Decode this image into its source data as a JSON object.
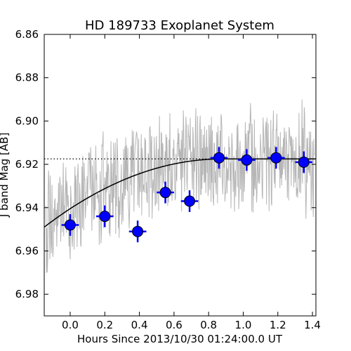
{
  "chart_data": {
    "type": "scatter",
    "title": "HD 189733 Exoplanet System",
    "xlabel": "Hours Since 2013/10/30 01:24:00.0 UT",
    "ylabel": "J band Mag [AB]",
    "xlim": [
      -0.15,
      1.42
    ],
    "ylim": [
      6.99,
      6.86
    ],
    "y_inverted": true,
    "grid": false,
    "x_ticks": [
      0.0,
      0.2,
      0.4,
      0.6,
      0.8,
      1.0,
      1.2,
      1.4
    ],
    "x_tick_labels": [
      "0.0",
      "0.2",
      "0.4",
      "0.6",
      "0.8",
      "1.0",
      "1.2",
      "1.4"
    ],
    "y_ticks": [
      6.86,
      6.88,
      6.9,
      6.92,
      6.94,
      6.96,
      6.98
    ],
    "y_tick_labels": [
      "6.86",
      "6.88",
      "6.90",
      "6.92",
      "6.94",
      "6.96",
      "6.98"
    ],
    "colors": {
      "points": "#0000ff",
      "point_edge": "#000000",
      "raw_series": "#9e9e9e",
      "model": "#000000",
      "baseline": "#000000"
    },
    "binned_points": {
      "x": [
        0.0,
        0.2,
        0.39,
        0.55,
        0.69,
        0.86,
        1.02,
        1.19,
        1.35
      ],
      "y": [
        6.948,
        6.944,
        6.951,
        6.933,
        6.937,
        6.917,
        6.918,
        6.917,
        6.919
      ],
      "xerr": 0.05,
      "yerr": 0.005
    },
    "model_curve": {
      "type": "ingress",
      "x_start": -0.15,
      "x_contact": 0.88,
      "x_end": 1.42,
      "y_start": 6.949,
      "y_min_point": -0.15,
      "y_baseline": 6.9175
    },
    "baseline_level": {
      "y": 6.9175,
      "x_range": [
        -0.15,
        0.86
      ],
      "style": "dotted"
    },
    "raw_series": {
      "x_range": [
        -0.14,
        1.41
      ],
      "count": 620,
      "seed": 7,
      "description_hidden": true
    }
  }
}
